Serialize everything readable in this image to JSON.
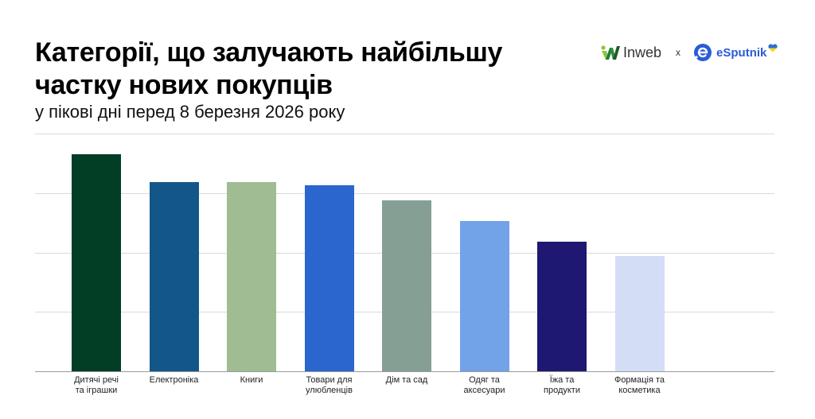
{
  "header": {
    "title": "Категорії, що залучають найбільшу частку нових покупців",
    "subtitle": "у пікові дні перед 8 березня 2026 року"
  },
  "logos": {
    "left": "Inweb",
    "separator": "x",
    "right": "eSputnik",
    "colors": {
      "inweb_dark": "#1f5a2a",
      "inweb_light": "#8cc63f",
      "esputnik_blue": "#2a5bd7",
      "flag_blue": "#2a6fdb",
      "flag_yellow": "#f7d417"
    }
  },
  "chart_data": {
    "type": "bar",
    "title": "Категорії, що залучають найбільшу частку нових покупців",
    "subtitle": "у пікові дні перед 8 березня 2026 року",
    "xlabel": "",
    "ylabel": "",
    "ylim": [
      0,
      4
    ],
    "grid": true,
    "y_tick_labels_visible": false,
    "legend": null,
    "categories": [
      "Дитячі речі та іграшки",
      "Електроніка",
      "Книги",
      "Товари для улюбленців",
      "Дім та сад",
      "Одяг та аксесуари",
      "Їжа та продукти",
      "Формація та косметика"
    ],
    "category_lines": [
      [
        "Дитячі речі",
        "та іграшки"
      ],
      [
        "Електроніка"
      ],
      [
        "Книги"
      ],
      [
        "Товари для",
        "улюбленців"
      ],
      [
        "Дім та сад"
      ],
      [
        "Одяг та",
        "аксесуари"
      ],
      [
        "Їжа та",
        "продукти"
      ],
      [
        "Формація та",
        "косметика"
      ]
    ],
    "values": [
      3.65,
      3.18,
      3.18,
      3.13,
      2.88,
      2.53,
      2.18,
      1.94
    ],
    "colors": [
      "#023d26",
      "#13578a",
      "#a0bc93",
      "#2b66cf",
      "#869f95",
      "#72a2e8",
      "#1e1872",
      "#d3ddf6"
    ]
  }
}
